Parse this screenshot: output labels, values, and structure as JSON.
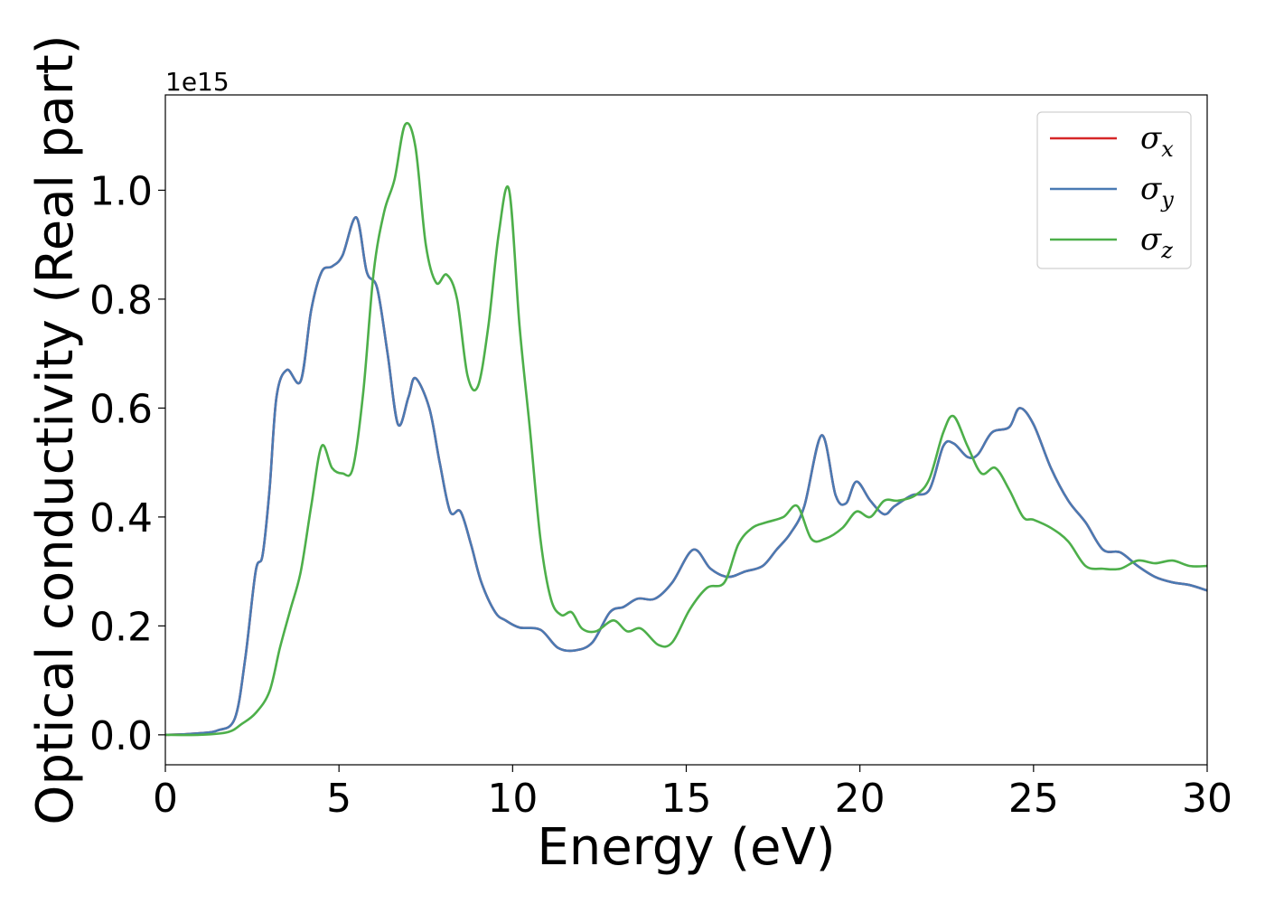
{
  "chart_data": {
    "type": "line",
    "xlabel": "Energy (eV)",
    "ylabel": "Optical conductivity (Real part)",
    "y_offset_text": "1e15",
    "y_scale": 1000000000000000.0,
    "xlim": [
      0,
      30
    ],
    "ylim": [
      -0.055,
      1.175
    ],
    "xticks": [
      0,
      5,
      10,
      15,
      20,
      25,
      30
    ],
    "xtick_labels": [
      "0",
      "5",
      "10",
      "15",
      "20",
      "25",
      "30"
    ],
    "yticks": [
      0.0,
      0.2,
      0.4,
      0.6,
      0.8,
      1.0
    ],
    "ytick_labels": [
      "0.0",
      "0.2",
      "0.4",
      "0.6",
      "0.8",
      "1.0"
    ],
    "grid": false,
    "legend_position": "top-right",
    "series": [
      {
        "name": "σx",
        "symbol": "σ",
        "subscript": "x",
        "color": "#d62728",
        "x": [
          0,
          0.5,
          1.0,
          1.5,
          2.0,
          2.3,
          2.6,
          2.8,
          3.0,
          3.2,
          3.5,
          3.9,
          4.2,
          4.5,
          4.8,
          5.1,
          5.5,
          5.8,
          6.1,
          6.4,
          6.7,
          7.0,
          7.2,
          7.6,
          7.9,
          8.2,
          8.5,
          8.8,
          9.1,
          9.5,
          9.8,
          10.2,
          10.8,
          11.3,
          11.8,
          12.3,
          12.8,
          13.2,
          13.6,
          14.1,
          14.6,
          15.2,
          15.7,
          16.2,
          16.7,
          17.2,
          17.6,
          18.0,
          18.4,
          18.9,
          19.3,
          19.6,
          19.9,
          20.3,
          20.7,
          21.0,
          21.5,
          22.0,
          22.4,
          22.7,
          23.1,
          23.4,
          23.8,
          24.3,
          24.6,
          25.0,
          25.5,
          26.0,
          26.5,
          27.0,
          27.5,
          28.0,
          28.5,
          29.0,
          29.5,
          30.0
        ],
        "y": [
          0.0,
          0.001,
          0.003,
          0.008,
          0.03,
          0.14,
          0.3,
          0.33,
          0.45,
          0.62,
          0.67,
          0.65,
          0.78,
          0.85,
          0.86,
          0.88,
          0.95,
          0.85,
          0.82,
          0.7,
          0.57,
          0.62,
          0.655,
          0.6,
          0.5,
          0.41,
          0.41,
          0.35,
          0.28,
          0.225,
          0.21,
          0.197,
          0.193,
          0.16,
          0.155,
          0.17,
          0.225,
          0.235,
          0.25,
          0.25,
          0.28,
          0.34,
          0.305,
          0.29,
          0.3,
          0.31,
          0.34,
          0.37,
          0.42,
          0.55,
          0.44,
          0.425,
          0.465,
          0.43,
          0.405,
          0.42,
          0.44,
          0.45,
          0.53,
          0.535,
          0.51,
          0.515,
          0.555,
          0.565,
          0.6,
          0.57,
          0.49,
          0.43,
          0.39,
          0.34,
          0.335,
          0.31,
          0.29,
          0.28,
          0.275,
          0.265
        ]
      },
      {
        "name": "σy",
        "symbol": "σ",
        "subscript": "y",
        "color": "#4a7ab3",
        "x": [
          0,
          0.5,
          1.0,
          1.5,
          2.0,
          2.3,
          2.6,
          2.8,
          3.0,
          3.2,
          3.5,
          3.9,
          4.2,
          4.5,
          4.8,
          5.1,
          5.5,
          5.8,
          6.1,
          6.4,
          6.7,
          7.0,
          7.2,
          7.6,
          7.9,
          8.2,
          8.5,
          8.8,
          9.1,
          9.5,
          9.8,
          10.2,
          10.8,
          11.3,
          11.8,
          12.3,
          12.8,
          13.2,
          13.6,
          14.1,
          14.6,
          15.2,
          15.7,
          16.2,
          16.7,
          17.2,
          17.6,
          18.0,
          18.4,
          18.9,
          19.3,
          19.6,
          19.9,
          20.3,
          20.7,
          21.0,
          21.5,
          22.0,
          22.4,
          22.7,
          23.1,
          23.4,
          23.8,
          24.3,
          24.6,
          25.0,
          25.5,
          26.0,
          26.5,
          27.0,
          27.5,
          28.0,
          28.5,
          29.0,
          29.5,
          30.0
        ],
        "y": [
          0.0,
          0.001,
          0.003,
          0.008,
          0.03,
          0.14,
          0.3,
          0.33,
          0.45,
          0.62,
          0.67,
          0.65,
          0.78,
          0.85,
          0.86,
          0.88,
          0.95,
          0.85,
          0.82,
          0.7,
          0.57,
          0.62,
          0.655,
          0.6,
          0.5,
          0.41,
          0.41,
          0.35,
          0.28,
          0.225,
          0.21,
          0.197,
          0.193,
          0.16,
          0.155,
          0.17,
          0.225,
          0.235,
          0.25,
          0.25,
          0.28,
          0.34,
          0.305,
          0.29,
          0.3,
          0.31,
          0.34,
          0.37,
          0.42,
          0.55,
          0.44,
          0.425,
          0.465,
          0.43,
          0.405,
          0.42,
          0.44,
          0.45,
          0.53,
          0.535,
          0.51,
          0.515,
          0.555,
          0.565,
          0.6,
          0.57,
          0.49,
          0.43,
          0.39,
          0.34,
          0.335,
          0.31,
          0.29,
          0.28,
          0.275,
          0.265
        ]
      },
      {
        "name": "σz",
        "symbol": "σ",
        "subscript": "z",
        "color": "#4daf4a",
        "x": [
          0,
          1.0,
          1.8,
          2.2,
          2.6,
          3.0,
          3.3,
          3.6,
          3.9,
          4.2,
          4.5,
          4.8,
          5.1,
          5.4,
          5.7,
          6.0,
          6.3,
          6.6,
          6.9,
          7.2,
          7.5,
          7.8,
          8.1,
          8.4,
          8.7,
          9.0,
          9.3,
          9.6,
          9.9,
          10.2,
          10.5,
          10.8,
          11.1,
          11.4,
          11.7,
          12.0,
          12.4,
          12.9,
          13.3,
          13.7,
          14.2,
          14.6,
          15.1,
          15.6,
          16.1,
          16.5,
          16.9,
          17.3,
          17.8,
          18.2,
          18.6,
          19.0,
          19.5,
          19.9,
          20.3,
          20.7,
          21.1,
          21.6,
          22.0,
          22.4,
          22.7,
          23.1,
          23.5,
          23.9,
          24.3,
          24.7,
          25.0,
          25.5,
          26.0,
          26.5,
          27.0,
          27.5,
          28.0,
          28.5,
          29.0,
          29.5,
          30.0
        ],
        "y": [
          0.0,
          0.0,
          0.005,
          0.02,
          0.04,
          0.08,
          0.16,
          0.23,
          0.3,
          0.42,
          0.53,
          0.49,
          0.48,
          0.49,
          0.63,
          0.85,
          0.96,
          1.02,
          1.12,
          1.08,
          0.9,
          0.83,
          0.845,
          0.8,
          0.66,
          0.64,
          0.75,
          0.92,
          1.0,
          0.75,
          0.56,
          0.36,
          0.25,
          0.22,
          0.225,
          0.195,
          0.19,
          0.21,
          0.19,
          0.195,
          0.165,
          0.17,
          0.23,
          0.27,
          0.28,
          0.35,
          0.38,
          0.39,
          0.4,
          0.42,
          0.36,
          0.36,
          0.38,
          0.41,
          0.4,
          0.43,
          0.43,
          0.44,
          0.47,
          0.555,
          0.585,
          0.53,
          0.48,
          0.49,
          0.45,
          0.4,
          0.395,
          0.38,
          0.355,
          0.31,
          0.305,
          0.305,
          0.32,
          0.315,
          0.32,
          0.31,
          0.31
        ]
      }
    ]
  }
}
